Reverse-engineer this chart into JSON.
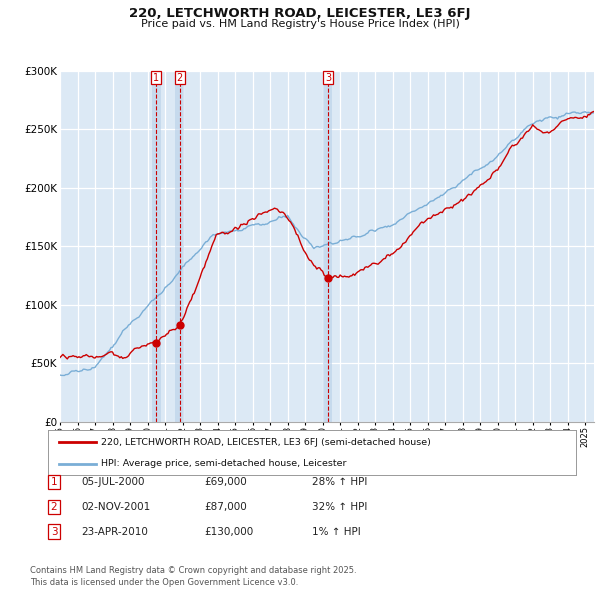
{
  "title": "220, LETCHWORTH ROAD, LEICESTER, LE3 6FJ",
  "subtitle": "Price paid vs. HM Land Registry's House Price Index (HPI)",
  "ylim": [
    0,
    300000
  ],
  "yticks": [
    0,
    50000,
    100000,
    150000,
    200000,
    250000,
    300000
  ],
  "chart_bg": "#dce9f5",
  "fig_bg": "#ffffff",
  "grid_color": "#ffffff",
  "red_color": "#cc0000",
  "blue_color": "#7aaed6",
  "purchases": [
    {
      "num": 1,
      "date": "05-JUL-2000",
      "price": 69000,
      "pct": "28%",
      "x_year": 2000.5
    },
    {
      "num": 2,
      "date": "02-NOV-2001",
      "price": 87000,
      "pct": "32%",
      "x_year": 2001.83
    },
    {
      "num": 3,
      "date": "23-APR-2010",
      "price": 130000,
      "pct": "1%",
      "x_year": 2010.3
    }
  ],
  "legend_label_red": "220, LETCHWORTH ROAD, LEICESTER, LE3 6FJ (semi-detached house)",
  "legend_label_blue": "HPI: Average price, semi-detached house, Leicester",
  "footnote": "Contains HM Land Registry data © Crown copyright and database right 2025.\nThis data is licensed under the Open Government Licence v3.0.",
  "xmin": 1995,
  "xmax": 2025.5
}
